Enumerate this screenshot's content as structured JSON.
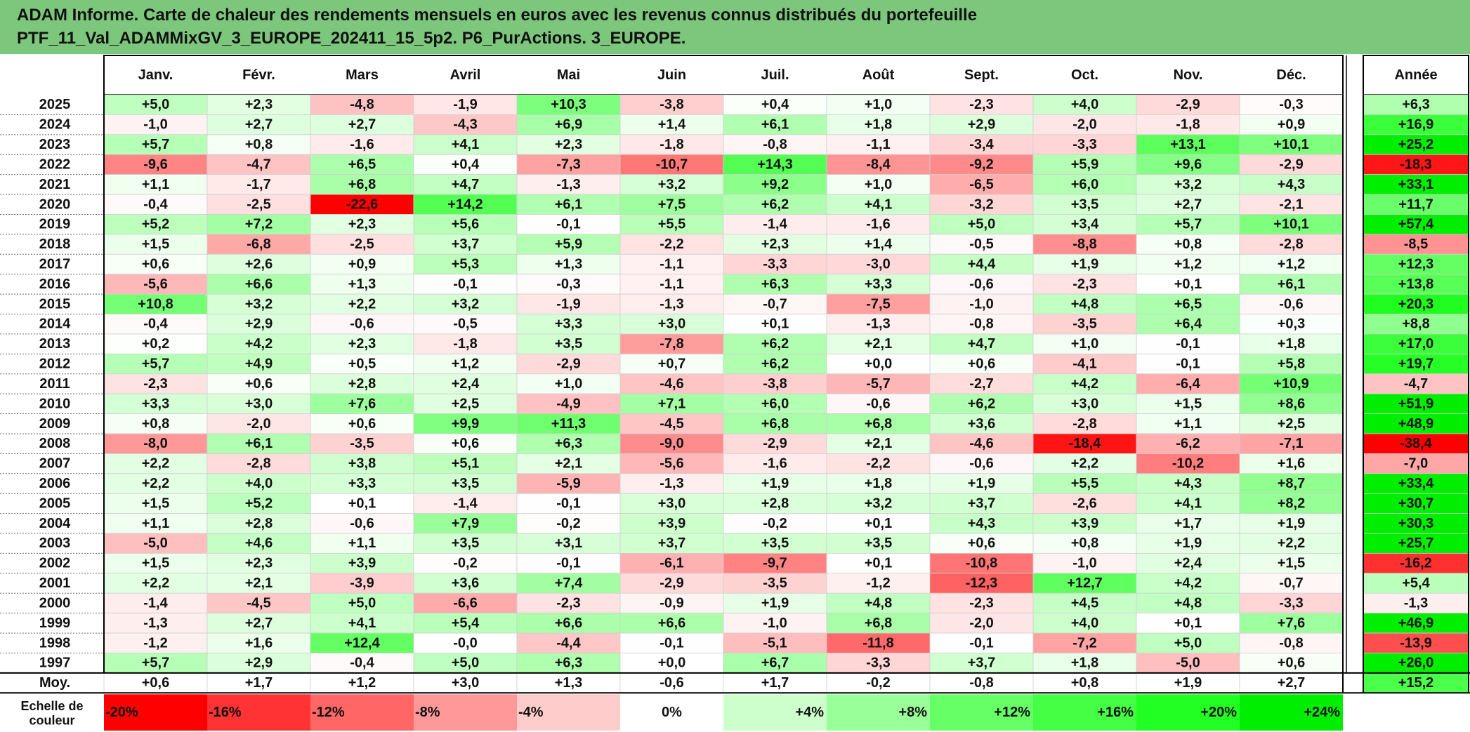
{
  "title_lines": [
    "ADAM Informe. Carte de chaleur des rendements mensuels en euros avec les revenus connus distribués du portefeuille",
    "PTF_11_Val_ADAMMixGV_3_EUROPE_202411_15_5p2. P6_PurActions. 3_EUROPE."
  ],
  "chart_data": {
    "type": "heatmap",
    "title": "ADAM Informe. Carte de chaleur des rendements mensuels en euros avec les revenus connus distribués du portefeuille PTF_11_Val_ADAMMixGV_3_EUROPE_202411_15_5p2. P6_PurActions. 3_EUROPE.",
    "columns": [
      "Janv.",
      "Févr.",
      "Mars",
      "Avril",
      "Mai",
      "Juin",
      "Juil.",
      "Août",
      "Sept.",
      "Oct.",
      "Nov.",
      "Déc."
    ],
    "year_column_label": "Année",
    "rows": [
      {
        "year": "2025",
        "months": [
          "+5,0",
          "+2,3",
          "-4,8",
          "-1,9",
          "+10,3",
          "-3,8",
          "+0,4",
          "+1,0",
          "-2,3",
          "+4,0",
          "-2,9",
          "-0,3"
        ],
        "year_total": "+6,3"
      },
      {
        "year": "2024",
        "months": [
          "-1,0",
          "+2,7",
          "+2,7",
          "-4,3",
          "+6,9",
          "+1,4",
          "+6,1",
          "+1,8",
          "+2,9",
          "-2,0",
          "-1,8",
          "+0,9"
        ],
        "year_total": "+16,9"
      },
      {
        "year": "2023",
        "months": [
          "+5,7",
          "+0,8",
          "-1,6",
          "+4,1",
          "+2,3",
          "-1,8",
          "-0,8",
          "-1,1",
          "-3,4",
          "-3,3",
          "+13,1",
          "+10,1"
        ],
        "year_total": "+25,2"
      },
      {
        "year": "2022",
        "months": [
          "-9,6",
          "-4,7",
          "+6,5",
          "+0,4",
          "-7,3",
          "-10,7",
          "+14,3",
          "-8,4",
          "-9,2",
          "+5,9",
          "+9,6",
          "-2,9"
        ],
        "year_total": "-18,3"
      },
      {
        "year": "2021",
        "months": [
          "+1,1",
          "-1,7",
          "+6,8",
          "+4,7",
          "-1,3",
          "+3,2",
          "+9,2",
          "+1,0",
          "-6,5",
          "+6,0",
          "+3,2",
          "+4,3"
        ],
        "year_total": "+33,1"
      },
      {
        "year": "2020",
        "months": [
          "-0,4",
          "-2,5",
          "-22,6",
          "+14,2",
          "+6,1",
          "+7,5",
          "+6,2",
          "+4,1",
          "-3,2",
          "+3,5",
          "+2,7",
          "-2,1"
        ],
        "year_total": "+11,7"
      },
      {
        "year": "2019",
        "months": [
          "+5,2",
          "+7,2",
          "+2,3",
          "+5,6",
          "-0,1",
          "+5,5",
          "-1,4",
          "-1,6",
          "+5,0",
          "+3,4",
          "+5,7",
          "+10,1"
        ],
        "year_total": "+57,4"
      },
      {
        "year": "2018",
        "months": [
          "+1,5",
          "-6,8",
          "-2,5",
          "+3,7",
          "+5,9",
          "-2,2",
          "+2,3",
          "+1,4",
          "-0,5",
          "-8,8",
          "+0,8",
          "-2,8"
        ],
        "year_total": "-8,5"
      },
      {
        "year": "2017",
        "months": [
          "+0,6",
          "+2,6",
          "+0,9",
          "+5,3",
          "+1,3",
          "-1,1",
          "-3,3",
          "-3,0",
          "+4,4",
          "+1,9",
          "+1,2",
          "+1,2"
        ],
        "year_total": "+12,3"
      },
      {
        "year": "2016",
        "months": [
          "-5,6",
          "+6,6",
          "+1,3",
          "-0,1",
          "-0,3",
          "-1,1",
          "+6,3",
          "+3,3",
          "-0,6",
          "-2,3",
          "+0,1",
          "+6,1"
        ],
        "year_total": "+13,8"
      },
      {
        "year": "2015",
        "months": [
          "+10,8",
          "+3,2",
          "+2,2",
          "+3,2",
          "-1,9",
          "-1,3",
          "-0,7",
          "-7,5",
          "-1,0",
          "+4,8",
          "+6,5",
          "-0,6"
        ],
        "year_total": "+20,3"
      },
      {
        "year": "2014",
        "months": [
          "-0,4",
          "+2,9",
          "-0,6",
          "-0,5",
          "+3,3",
          "+3,0",
          "+0,1",
          "-1,3",
          "-0,8",
          "-3,5",
          "+6,4",
          "+0,3"
        ],
        "year_total": "+8,8"
      },
      {
        "year": "2013",
        "months": [
          "+0,2",
          "+4,2",
          "+2,3",
          "-1,8",
          "+3,5",
          "-7,8",
          "+6,2",
          "+2,1",
          "+4,7",
          "+1,0",
          "-0,1",
          "+1,8"
        ],
        "year_total": "+17,0"
      },
      {
        "year": "2012",
        "months": [
          "+5,7",
          "+4,9",
          "+0,5",
          "+1,2",
          "-2,9",
          "+0,7",
          "+6,2",
          "+0,0",
          "+0,6",
          "-4,1",
          "-0,1",
          "+5,8"
        ],
        "year_total": "+19,7"
      },
      {
        "year": "2011",
        "months": [
          "-2,3",
          "+0,6",
          "+2,8",
          "+2,4",
          "+1,0",
          "-4,6",
          "-3,8",
          "-5,7",
          "-2,7",
          "+4,2",
          "-6,4",
          "+10,9"
        ],
        "year_total": "-4,7"
      },
      {
        "year": "2010",
        "months": [
          "+3,3",
          "+3,0",
          "+7,6",
          "+2,5",
          "-4,9",
          "+7,1",
          "+6,0",
          "-0,6",
          "+6,2",
          "+3,0",
          "+1,5",
          "+8,6"
        ],
        "year_total": "+51,9"
      },
      {
        "year": "2009",
        "months": [
          "+0,8",
          "-2,0",
          "+0,6",
          "+9,9",
          "+11,3",
          "-4,5",
          "+6,8",
          "+6,8",
          "+3,6",
          "-2,8",
          "+1,1",
          "+2,5"
        ],
        "year_total": "+48,9"
      },
      {
        "year": "2008",
        "months": [
          "-8,0",
          "+6,1",
          "-3,5",
          "+0,6",
          "+6,3",
          "-9,0",
          "-2,9",
          "+2,1",
          "-4,6",
          "-18,4",
          "-6,2",
          "-7,1"
        ],
        "year_total": "-38,4"
      },
      {
        "year": "2007",
        "months": [
          "+2,2",
          "-2,8",
          "+3,8",
          "+5,1",
          "+2,1",
          "-5,6",
          "-1,6",
          "-2,2",
          "-0,6",
          "+2,2",
          "-10,2",
          "+1,6"
        ],
        "year_total": "-7,0"
      },
      {
        "year": "2006",
        "months": [
          "+2,2",
          "+4,0",
          "+3,3",
          "+3,5",
          "-5,9",
          "-1,3",
          "+1,9",
          "+1,8",
          "+1,9",
          "+5,5",
          "+4,3",
          "+8,7"
        ],
        "year_total": "+33,4"
      },
      {
        "year": "2005",
        "months": [
          "+1,5",
          "+5,2",
          "+0,1",
          "-1,4",
          "-0,1",
          "+3,0",
          "+2,8",
          "+3,2",
          "+3,7",
          "-2,6",
          "+4,1",
          "+8,2"
        ],
        "year_total": "+30,7"
      },
      {
        "year": "2004",
        "months": [
          "+1,1",
          "+2,8",
          "-0,6",
          "+7,9",
          "-0,2",
          "+3,9",
          "-0,2",
          "+0,1",
          "+4,3",
          "+3,9",
          "+1,7",
          "+1,9"
        ],
        "year_total": "+30,3"
      },
      {
        "year": "2003",
        "months": [
          "-5,0",
          "+4,6",
          "+1,1",
          "+3,5",
          "+3,1",
          "+3,7",
          "+3,5",
          "+3,5",
          "+0,6",
          "+0,8",
          "+1,9",
          "+2,2"
        ],
        "year_total": "+25,7"
      },
      {
        "year": "2002",
        "months": [
          "+1,5",
          "+2,3",
          "+3,9",
          "-0,2",
          "-0,1",
          "-6,1",
          "-9,7",
          "+0,1",
          "-10,8",
          "-1,0",
          "+2,4",
          "+1,5"
        ],
        "year_total": "-16,2"
      },
      {
        "year": "2001",
        "months": [
          "+2,2",
          "+2,1",
          "-3,9",
          "+3,6",
          "+7,4",
          "-2,9",
          "-3,5",
          "-1,2",
          "-12,3",
          "+12,7",
          "+4,2",
          "-0,7"
        ],
        "year_total": "+5,4"
      },
      {
        "year": "2000",
        "months": [
          "-1,4",
          "-4,5",
          "+5,0",
          "-6,6",
          "-2,3",
          "-0,9",
          "+1,9",
          "+4,8",
          "-2,3",
          "+4,5",
          "+4,8",
          "-3,3"
        ],
        "year_total": "-1,3"
      },
      {
        "year": "1999",
        "months": [
          "-1,3",
          "+2,7",
          "+4,1",
          "+5,4",
          "+6,6",
          "+6,6",
          "-1,0",
          "+6,8",
          "-2,0",
          "+4,0",
          "+0,1",
          "+7,6"
        ],
        "year_total": "+46,9"
      },
      {
        "year": "1998",
        "months": [
          "-1,2",
          "+1,6",
          "+12,4",
          "-0,0",
          "-4,4",
          "-0,1",
          "-5,1",
          "-11,8",
          "-0,1",
          "-7,2",
          "+5,0",
          "-0,8"
        ],
        "year_total": "-13,9"
      },
      {
        "year": "1997",
        "months": [
          "+5,7",
          "+2,9",
          "-0,4",
          "+5,0",
          "+6,3",
          "+0,0",
          "+6,7",
          "-3,3",
          "+3,7",
          "+1,8",
          "-5,0",
          "+0,6"
        ],
        "year_total": "+26,0"
      }
    ],
    "average_row": {
      "label": "Moy.",
      "months": [
        "+0,6",
        "+1,7",
        "+1,2",
        "+3,0",
        "+1,3",
        "-0,6",
        "+1,7",
        "-0,2",
        "-0,8",
        "+0,8",
        "+1,9",
        "+2,7"
      ],
      "year_total": "+15,2"
    },
    "scale": {
      "label_lines": [
        "Echelle de",
        "couleur"
      ],
      "stops": [
        {
          "label": "-20%",
          "value": -20,
          "color": "#ff0000"
        },
        {
          "label": "-16%",
          "value": -16,
          "color": "#ff3333"
        },
        {
          "label": "-12%",
          "value": -12,
          "color": "#ff6666"
        },
        {
          "label": "-8%",
          "value": -8,
          "color": "#ff9999"
        },
        {
          "label": "-4%",
          "value": -4,
          "color": "#ffcccc"
        },
        {
          "label": "0%",
          "value": 0,
          "color": "#ffffff"
        },
        {
          "label": "+4%",
          "value": 4,
          "color": "#ccffcc"
        },
        {
          "label": "+8%",
          "value": 8,
          "color": "#99ff99"
        },
        {
          "label": "+12%",
          "value": 12,
          "color": "#66ff66"
        },
        {
          "label": "+16%",
          "value": 16,
          "color": "#44ff44"
        },
        {
          "label": "+20%",
          "value": 20,
          "color": "#22ff22"
        },
        {
          "label": "+24%",
          "value": 24,
          "color": "#00ee00"
        }
      ]
    },
    "colors": {
      "title_bar": "#7dc77d",
      "negative_max": "#ff0000",
      "positive_max": "#00ee00",
      "neutral": "#ffffff"
    }
  }
}
